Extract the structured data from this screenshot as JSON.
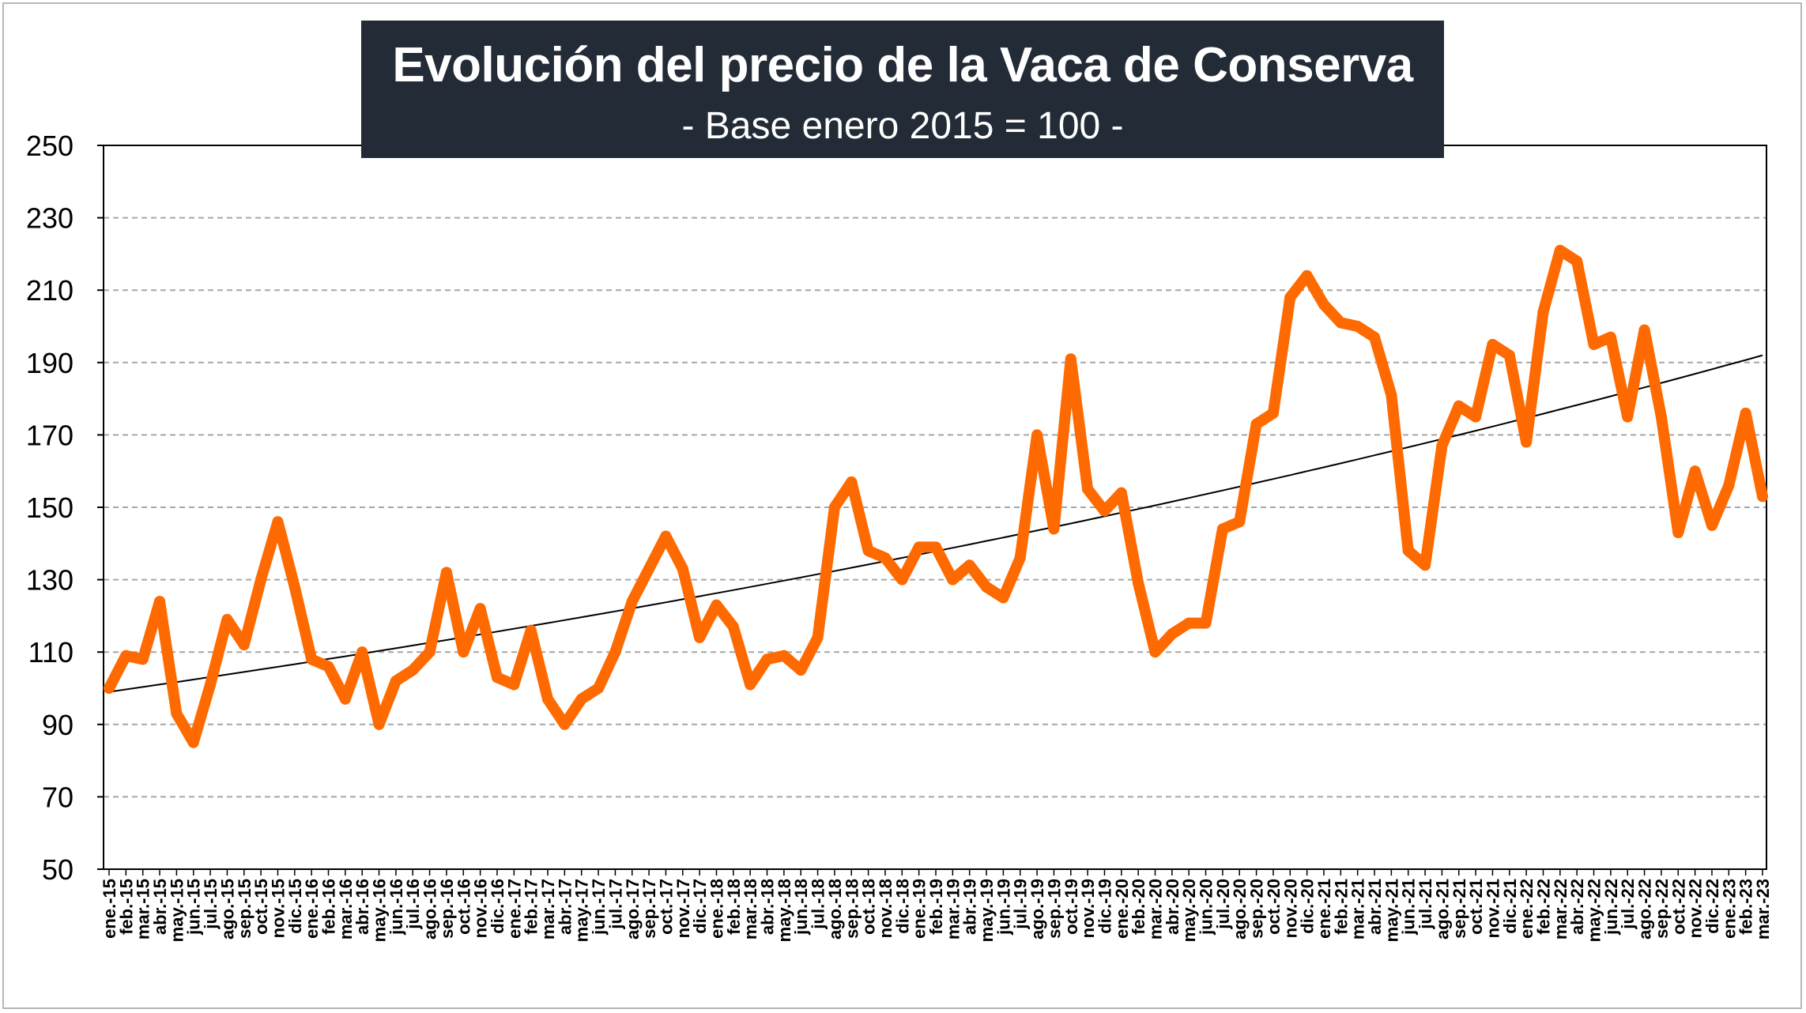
{
  "chart_data": {
    "type": "line",
    "title": "Evolución del precio de la Vaca de Conserva",
    "subtitle": "- Base enero 2015 = 100 -",
    "ylim": [
      50,
      250
    ],
    "yticks": [
      50,
      70,
      90,
      110,
      130,
      150,
      170,
      190,
      210,
      230,
      250
    ],
    "grid": "horizontal dashed",
    "legend": "none",
    "colors": {
      "series": "#ff6a00",
      "trend": "#000000",
      "grid": "#a6a6a6",
      "title_bg": "#232b36"
    },
    "x": [
      "ene.-15",
      "feb.-15",
      "mar.-15",
      "abr.-15",
      "may.-15",
      "jun.-15",
      "jul.-15",
      "ago.-15",
      "sep.-15",
      "oct.-15",
      "nov.-15",
      "dic.-15",
      "ene.-16",
      "feb.-16",
      "mar.-16",
      "abr.-16",
      "may.-16",
      "jun.-16",
      "jul.-16",
      "ago.-16",
      "sep.-16",
      "oct.-16",
      "nov.-16",
      "dic.-16",
      "ene.-17",
      "feb.-17",
      "mar.-17",
      "abr.-17",
      "may.-17",
      "jun.-17",
      "jul.-17",
      "ago.-17",
      "sep.-17",
      "oct.-17",
      "nov.-17",
      "dic.-17",
      "ene.-18",
      "feb.-18",
      "mar.-18",
      "abr.-18",
      "may.-18",
      "jun.-18",
      "jul.-18",
      "ago.-18",
      "sep.-18",
      "oct.-18",
      "nov.-18",
      "dic.-18",
      "ene.-19",
      "feb.-19",
      "mar.-19",
      "abr.-19",
      "may.-19",
      "jun.-19",
      "jul.-19",
      "ago.-19",
      "sep.-19",
      "oct.-19",
      "nov.-19",
      "dic.-19",
      "ene.-20",
      "feb.-20",
      "mar.-20",
      "abr.-20",
      "may.-20",
      "jun.-20",
      "jul.-20",
      "ago.-20",
      "sep.-20",
      "oct.-20",
      "nov.-20",
      "dic.-20",
      "ene.-21",
      "feb.-21",
      "mar.-21",
      "abr.-21",
      "may.-21",
      "jun.-21",
      "jul.-21",
      "ago.-21",
      "sep.-21",
      "oct.-21",
      "nov.-21",
      "dic.-21",
      "ene.-22",
      "feb.-22",
      "mar.-22",
      "abr.-22",
      "may.-22",
      "jun.-22",
      "jul.-22",
      "ago.-22",
      "sep.-22",
      "oct.-22",
      "nov.-22",
      "dic.-22",
      "ene.-23",
      "feb.-23",
      "mar.-23"
    ],
    "series": [
      {
        "values": [
          100,
          109,
          108,
          124,
          93,
          85,
          101,
          119,
          112,
          130,
          146,
          128,
          108,
          106,
          97,
          110,
          90,
          102,
          105,
          110,
          132,
          110,
          122,
          103,
          101,
          116,
          97,
          90,
          97,
          100,
          110,
          124,
          133,
          142,
          133,
          114,
          123,
          117,
          101,
          108,
          109,
          105,
          114,
          150,
          157,
          138,
          136,
          130,
          139,
          139,
          130,
          134,
          128,
          125,
          136,
          170,
          144,
          191,
          155,
          149,
          154,
          129,
          110,
          115,
          118,
          118,
          144,
          146,
          173,
          176,
          208,
          214,
          206,
          201,
          200,
          197,
          181,
          138,
          134,
          167,
          178,
          175,
          195,
          192,
          168,
          204,
          221,
          218,
          195,
          197,
          175,
          199,
          175,
          143,
          160,
          145,
          156,
          176,
          153
        ]
      }
    ],
    "trendline": {
      "type": "exponential",
      "start": 99,
      "end": 192
    }
  }
}
